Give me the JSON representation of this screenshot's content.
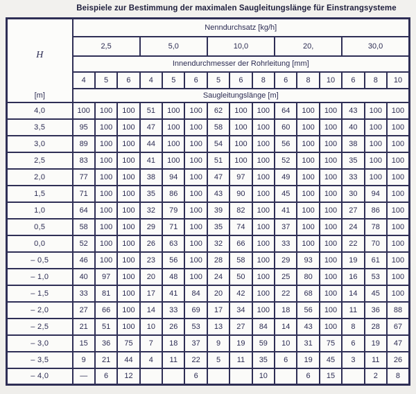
{
  "title": "Beispiele zur Bestimmung der maximalen Saugleitungslänge für Einstrangsysteme",
  "table": {
    "corner": {
      "h_label": "H",
      "unit_label": "[m]"
    },
    "header_flow": "Nenndurchsatz [kg/h]",
    "flow_rates": [
      "2,5",
      "5,0",
      "10,0",
      "20,",
      "30,0"
    ],
    "header_diameter": "Innendurchmesser der Rohrleitung [mm]",
    "diameters": [
      "4",
      "5",
      "6",
      "4",
      "5",
      "6",
      "5",
      "6",
      "8",
      "6",
      "8",
      "10",
      "6",
      "8",
      "10"
    ],
    "header_length": "Saugleitungslänge [m]",
    "rows": [
      {
        "h": "4,0",
        "values": [
          "100",
          "100",
          "100",
          "51",
          "100",
          "100",
          "62",
          "100",
          "100",
          "64",
          "100",
          "100",
          "43",
          "100",
          "100"
        ]
      },
      {
        "h": "3,5",
        "values": [
          "95",
          "100",
          "100",
          "47",
          "100",
          "100",
          "58",
          "100",
          "100",
          "60",
          "100",
          "100",
          "40",
          "100",
          "100"
        ]
      },
      {
        "h": "3,0",
        "values": [
          "89",
          "100",
          "100",
          "44",
          "100",
          "100",
          "54",
          "100",
          "100",
          "56",
          "100",
          "100",
          "38",
          "100",
          "100"
        ]
      },
      {
        "h": "2,5",
        "values": [
          "83",
          "100",
          "100",
          "41",
          "100",
          "100",
          "51",
          "100",
          "100",
          "52",
          "100",
          "100",
          "35",
          "100",
          "100"
        ]
      },
      {
        "h": "2,0",
        "values": [
          "77",
          "100",
          "100",
          "38",
          "94",
          "100",
          "47",
          "97",
          "100",
          "49",
          "100",
          "100",
          "33",
          "100",
          "100"
        ]
      },
      {
        "h": "1,5",
        "values": [
          "71",
          "100",
          "100",
          "35",
          "86",
          "100",
          "43",
          "90",
          "100",
          "45",
          "100",
          "100",
          "30",
          "94",
          "100"
        ]
      },
      {
        "h": "1,0",
        "values": [
          "64",
          "100",
          "100",
          "32",
          "79",
          "100",
          "39",
          "82",
          "100",
          "41",
          "100",
          "100",
          "27",
          "86",
          "100"
        ]
      },
      {
        "h": "0,5",
        "values": [
          "58",
          "100",
          "100",
          "29",
          "71",
          "100",
          "35",
          "74",
          "100",
          "37",
          "100",
          "100",
          "24",
          "78",
          "100"
        ]
      },
      {
        "h": "0,0",
        "values": [
          "52",
          "100",
          "100",
          "26",
          "63",
          "100",
          "32",
          "66",
          "100",
          "33",
          "100",
          "100",
          "22",
          "70",
          "100"
        ]
      },
      {
        "h": "– 0,5",
        "values": [
          "46",
          "100",
          "100",
          "23",
          "56",
          "100",
          "28",
          "58",
          "100",
          "29",
          "93",
          "100",
          "19",
          "61",
          "100"
        ]
      },
      {
        "h": "– 1,0",
        "values": [
          "40",
          "97",
          "100",
          "20",
          "48",
          "100",
          "24",
          "50",
          "100",
          "25",
          "80",
          "100",
          "16",
          "53",
          "100"
        ]
      },
      {
        "h": "– 1,5",
        "values": [
          "33",
          "81",
          "100",
          "17",
          "41",
          "84",
          "20",
          "42",
          "100",
          "22",
          "68",
          "100",
          "14",
          "45",
          "100"
        ]
      },
      {
        "h": "– 2,0",
        "values": [
          "27",
          "66",
          "100",
          "14",
          "33",
          "69",
          "17",
          "34",
          "100",
          "18",
          "56",
          "100",
          "11",
          "36",
          "88"
        ]
      },
      {
        "h": "– 2,5",
        "values": [
          "21",
          "51",
          "100",
          "10",
          "26",
          "53",
          "13",
          "27",
          "84",
          "14",
          "43",
          "100",
          "8",
          "28",
          "67"
        ]
      },
      {
        "h": "– 3,0",
        "values": [
          "15",
          "36",
          "75",
          "7",
          "18",
          "37",
          "9",
          "19",
          "59",
          "10",
          "31",
          "75",
          "6",
          "19",
          "47"
        ]
      },
      {
        "h": "– 3,5",
        "values": [
          "9",
          "21",
          "44",
          "4",
          "11",
          "22",
          "5",
          "11",
          "35",
          "6",
          "19",
          "45",
          "3",
          "11",
          "26"
        ]
      },
      {
        "h": "– 4,0",
        "values": [
          "—",
          "6",
          "12",
          "",
          "",
          "6",
          "",
          "",
          "10",
          "",
          "6",
          "15",
          "",
          "2",
          "8"
        ]
      }
    ]
  }
}
